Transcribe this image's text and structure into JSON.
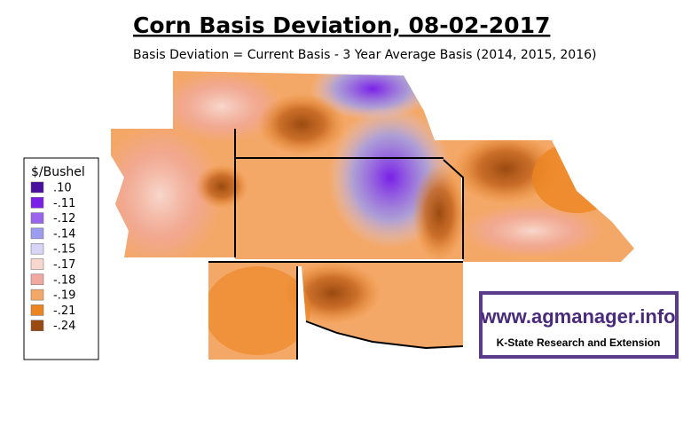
{
  "title": "Corn Basis Deviation, 08-02-2017",
  "subtitle": "Basis Deviation = Current Basis - 3 Year Average Basis (2014, 2015, 2016)",
  "legend": {
    "title": "$/Bushel",
    "items": [
      {
        "label": ".10",
        "color": "#4b0fa0"
      },
      {
        "label": "-.11",
        "color": "#7a1fe8"
      },
      {
        "label": "-.12",
        "color": "#9b64ec"
      },
      {
        "label": "-.14",
        "color": "#9c9cf0"
      },
      {
        "label": "-.15",
        "color": "#d8d4f8"
      },
      {
        "label": "-.17",
        "color": "#f8d8cc"
      },
      {
        "label": "-.18",
        "color": "#f0a8a0"
      },
      {
        "label": "-.19",
        "color": "#f4a868"
      },
      {
        "label": "-.21",
        "color": "#ec8420"
      },
      {
        "label": "-.24",
        "color": "#9a4a10"
      }
    ]
  },
  "watermark": {
    "url": "www.agmanager.info",
    "org": "K-State Research and Extension"
  }
}
